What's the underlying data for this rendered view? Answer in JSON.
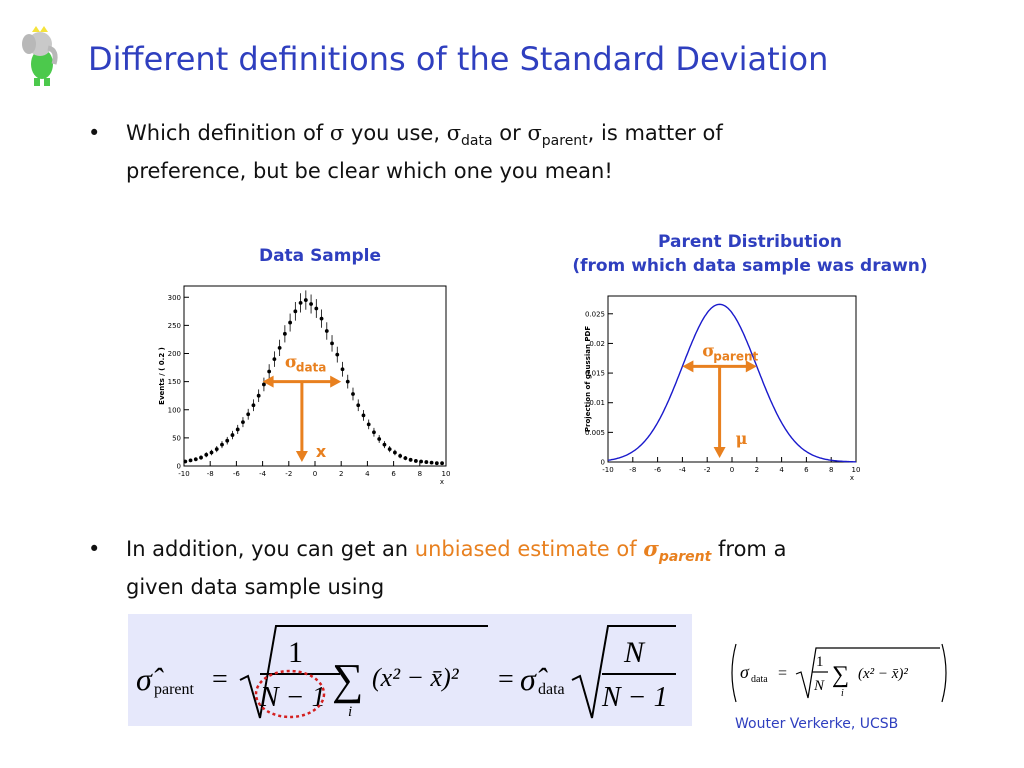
{
  "title": "Different definitions of the Standard Deviation",
  "bullet1": {
    "pre": "Which definition of ",
    "sigma": "σ",
    "mid1": " you use, ",
    "sub_data": "data",
    "mid2": " or ",
    "sub_parent": "parent",
    "post_line1": ",  is matter of",
    "line2": "preference, but be clear which one you mean!"
  },
  "plot_left": {
    "title": "Data Sample",
    "ylabel": "Events / ( 0.2 )",
    "xlabel": "x",
    "annotation_sigma": "σ",
    "annotation_sub": "data",
    "annotation_x": "x"
  },
  "plot_right": {
    "title_line1": "Parent Distribution",
    "title_line2": "(from which data sample was drawn)",
    "ylabel": "Projection of gaussian PDF",
    "xlabel": "x",
    "annotation_sigma": "σ",
    "annotation_sub": "parent",
    "annotation_mu": "μ"
  },
  "bullet2": {
    "pre": "In addition, you can get an ",
    "highlight": "unbiased estimate of ",
    "sigma": "σ",
    "sigma_sub": "parent",
    "post": " from a",
    "line2": "given data sample using"
  },
  "formula_main": {
    "lhs_sub": "parent",
    "eq": "=",
    "num": "1",
    "den": "N − 1",
    "sum_index": "i",
    "term": "(x² − x̄)²",
    "rhs_sub": "data",
    "rhs_num": "N",
    "rhs_den": "N − 1"
  },
  "formula_small": {
    "lhs": "σ",
    "lhs_sub": "data",
    "num": "1",
    "den": "N",
    "sum_index": "i",
    "term": "(x² − x̄)²"
  },
  "author": "Wouter Verkerke, UCSB",
  "colors": {
    "title": "#2f3fbf",
    "accent": "#e8801f",
    "curve": "#1a1acc",
    "box": "#e6e8fb"
  },
  "chart_data": [
    {
      "type": "scatter",
      "title": "Data Sample",
      "xlabel": "x",
      "ylabel": "Events / ( 0.2 )",
      "xlim": [
        -10,
        10
      ],
      "ylim": [
        0,
        320
      ],
      "xticks": [
        -10,
        -8,
        -6,
        -4,
        -2,
        0,
        2,
        4,
        6,
        8,
        10
      ],
      "yticks": [
        0,
        50,
        100,
        150,
        200,
        250,
        300
      ],
      "x": [
        -9.9,
        -9.5,
        -9.1,
        -8.7,
        -8.3,
        -7.9,
        -7.5,
        -7.1,
        -6.7,
        -6.3,
        -5.9,
        -5.5,
        -5.1,
        -4.7,
        -4.3,
        -3.9,
        -3.5,
        -3.1,
        -2.7,
        -2.3,
        -1.9,
        -1.5,
        -1.1,
        -0.7,
        -0.3,
        0.1,
        0.5,
        0.9,
        1.3,
        1.7,
        2.1,
        2.5,
        2.9,
        3.3,
        3.7,
        4.1,
        4.5,
        4.9,
        5.3,
        5.7,
        6.1,
        6.5,
        6.9,
        7.3,
        7.7,
        8.1,
        8.5,
        8.9,
        9.3,
        9.7
      ],
      "y": [
        8,
        10,
        12,
        15,
        20,
        24,
        30,
        38,
        45,
        55,
        65,
        78,
        92,
        108,
        125,
        145,
        168,
        190,
        210,
        235,
        255,
        275,
        290,
        295,
        288,
        280,
        262,
        240,
        218,
        198,
        172,
        150,
        128,
        108,
        90,
        74,
        60,
        48,
        38,
        30,
        24,
        18,
        14,
        11,
        9,
        8,
        7,
        6,
        5,
        5
      ]
    },
    {
      "type": "line",
      "title": "Parent Distribution (from which data sample was drawn)",
      "xlabel": "x",
      "ylabel": "Projection of gaussian PDF",
      "xlim": [
        -10,
        10
      ],
      "ylim": [
        0,
        0.028
      ],
      "xticks": [
        -10,
        -8,
        -6,
        -4,
        -2,
        0,
        2,
        4,
        6,
        8,
        10
      ],
      "yticks": [
        0,
        0.005,
        0.01,
        0.015,
        0.02,
        0.025
      ],
      "mean": -1,
      "sigma": 3,
      "peak": 0.0266
    }
  ]
}
